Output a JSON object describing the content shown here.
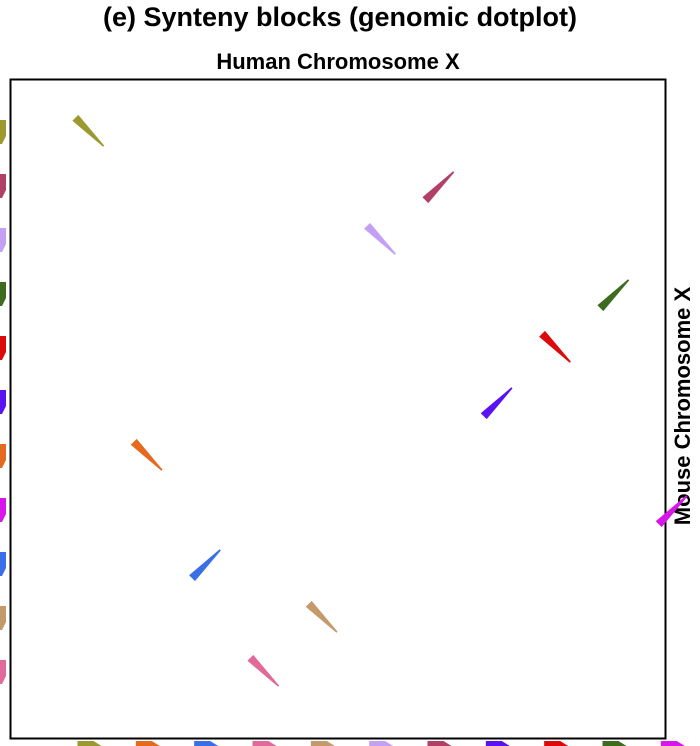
{
  "title": "(e) Synteny blocks (genomic dotplot)",
  "x_axis_label": "Human Chromosome X",
  "y_axis_label": "Mouse Chromosome X",
  "chart_data": {
    "type": "scatter",
    "title": "(e) Synteny blocks (genomic dotplot)",
    "xlabel": "Human Chromosome X",
    "ylabel": "Mouse Chromosome X",
    "xlim": [
      0,
      12
    ],
    "ylim": [
      0,
      12
    ],
    "grid": false,
    "legend": "none",
    "blocks": [
      {
        "x": 1.5,
        "y": 11.0,
        "orientation": "inverted",
        "color": "#9c9a2e"
      },
      {
        "x": 2.5,
        "y": 5.0,
        "orientation": "inverted",
        "color": "#e36a1e"
      },
      {
        "x": 3.5,
        "y": 3.0,
        "orientation": "forward",
        "color": "#3a6fe8"
      },
      {
        "x": 4.5,
        "y": 1.0,
        "orientation": "inverted",
        "color": "#e06a9a"
      },
      {
        "x": 5.5,
        "y": 2.0,
        "orientation": "inverted",
        "color": "#c49a6c"
      },
      {
        "x": 6.5,
        "y": 9.0,
        "orientation": "inverted",
        "color": "#c4a0f5"
      },
      {
        "x": 7.5,
        "y": 10.0,
        "orientation": "forward",
        "color": "#b04066"
      },
      {
        "x": 8.5,
        "y": 6.0,
        "orientation": "forward",
        "color": "#5a12f0"
      },
      {
        "x": 9.5,
        "y": 7.0,
        "orientation": "inverted",
        "color": "#dc0a0a"
      },
      {
        "x": 10.5,
        "y": 8.0,
        "orientation": "forward",
        "color": "#3d6b1f"
      },
      {
        "x": 11.5,
        "y": 4.0,
        "orientation": "forward",
        "color": "#d518e8"
      }
    ]
  }
}
